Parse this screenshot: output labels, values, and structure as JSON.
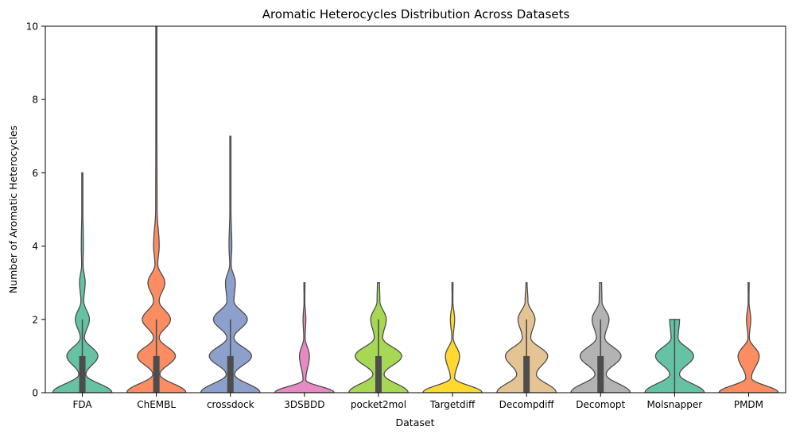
{
  "chart_data": {
    "type": "violin",
    "title": "Aromatic Heterocycles Distribution Across Datasets",
    "xlabel": "Dataset",
    "ylabel": "Number of Aromatic Heterocycles",
    "ylim": [
      0,
      10
    ],
    "yticks": [
      0,
      2,
      4,
      6,
      8,
      10
    ],
    "grid": false,
    "categories": [
      "FDA",
      "ChEMBL",
      "crossdock",
      "3DSBDD",
      "pocket2mol",
      "Targetdiff",
      "Decompdiff",
      "Decomopt",
      "Molsnapper",
      "PMDM"
    ],
    "colors": [
      "#66c2a5",
      "#fc8d62",
      "#8da0cb",
      "#e78ac3",
      "#a6d854",
      "#ffd92f",
      "#e5c494",
      "#b3b3b3",
      "#66c2a5",
      "#fc8d62"
    ],
    "violins": [
      {
        "category": "FDA",
        "max": 6,
        "q1": 0,
        "median": 0,
        "q3": 1,
        "whisker": 2,
        "density": [
          [
            0,
            0.42
          ],
          [
            0.5,
            0.05
          ],
          [
            1,
            0.22
          ],
          [
            1.5,
            0.03
          ],
          [
            2,
            0.1
          ],
          [
            2.5,
            0.02
          ],
          [
            3,
            0.04
          ],
          [
            3.5,
            0.01
          ],
          [
            4,
            0.015
          ],
          [
            5,
            0.008
          ],
          [
            6,
            0.008
          ]
        ]
      },
      {
        "category": "ChEMBL",
        "max": 10,
        "q1": 0,
        "median": 0,
        "q3": 1,
        "whisker": 2,
        "density": [
          [
            0,
            0.42
          ],
          [
            0.5,
            0.05
          ],
          [
            1,
            0.27
          ],
          [
            1.5,
            0.04
          ],
          [
            2,
            0.2
          ],
          [
            2.5,
            0.04
          ],
          [
            3,
            0.12
          ],
          [
            3.5,
            0.02
          ],
          [
            4,
            0.04
          ],
          [
            5,
            0.01
          ],
          [
            7,
            0.008
          ],
          [
            10,
            0.008
          ]
        ]
      },
      {
        "category": "crossdock",
        "max": 7,
        "q1": 0,
        "median": 0,
        "q3": 1,
        "whisker": 2,
        "density": [
          [
            0,
            0.42
          ],
          [
            0.5,
            0.06
          ],
          [
            1,
            0.3
          ],
          [
            1.5,
            0.05
          ],
          [
            2,
            0.24
          ],
          [
            2.5,
            0.05
          ],
          [
            3,
            0.07
          ],
          [
            3.5,
            0.01
          ],
          [
            4,
            0.02
          ],
          [
            5,
            0.008
          ],
          [
            7,
            0.008
          ]
        ]
      },
      {
        "category": "3DSBDD",
        "max": 3,
        "q1": 0,
        "median": 0,
        "q3": 0,
        "whisker": 0,
        "density": [
          [
            0,
            0.42
          ],
          [
            0.35,
            0.02
          ],
          [
            1,
            0.07
          ],
          [
            1.5,
            0.01
          ],
          [
            2,
            0.02
          ],
          [
            2.5,
            0.005
          ],
          [
            3,
            0.008
          ]
        ]
      },
      {
        "category": "pocket2mol",
        "max": 3,
        "q1": 0,
        "median": 0,
        "q3": 1,
        "whisker": 2,
        "density": [
          [
            0,
            0.42
          ],
          [
            0.5,
            0.08
          ],
          [
            1,
            0.33
          ],
          [
            1.5,
            0.06
          ],
          [
            2,
            0.11
          ],
          [
            2.5,
            0.02
          ],
          [
            3,
            0.015
          ]
        ]
      },
      {
        "category": "Targetdiff",
        "max": 3,
        "q1": 0,
        "median": 0,
        "q3": 0,
        "whisker": 0,
        "density": [
          [
            0,
            0.42
          ],
          [
            0.4,
            0.03
          ],
          [
            1,
            0.1
          ],
          [
            1.5,
            0.01
          ],
          [
            2,
            0.03
          ],
          [
            2.5,
            0.005
          ],
          [
            3,
            0.008
          ]
        ]
      },
      {
        "category": "Decompdiff",
        "max": 3,
        "q1": 0,
        "median": 0,
        "q3": 1,
        "whisker": 2,
        "density": [
          [
            0,
            0.42
          ],
          [
            0.5,
            0.14
          ],
          [
            1,
            0.3
          ],
          [
            1.5,
            0.06
          ],
          [
            2,
            0.12
          ],
          [
            2.5,
            0.02
          ],
          [
            3,
            0.008
          ]
        ]
      },
      {
        "category": "Decomopt",
        "max": 3,
        "q1": 0,
        "median": 0,
        "q3": 1,
        "whisker": 2,
        "density": [
          [
            0,
            0.42
          ],
          [
            0.5,
            0.08
          ],
          [
            1,
            0.29
          ],
          [
            1.5,
            0.06
          ],
          [
            2,
            0.12
          ],
          [
            2.5,
            0.02
          ],
          [
            3,
            0.015
          ]
        ]
      },
      {
        "category": "Molsnapper",
        "max": 2,
        "q1": 0,
        "median": 0,
        "q3": 0,
        "whisker": 2,
        "density": [
          [
            0,
            0.42
          ],
          [
            0.5,
            0.07
          ],
          [
            1,
            0.27
          ],
          [
            1.5,
            0.05
          ],
          [
            2,
            0.07
          ]
        ]
      },
      {
        "category": "PMDM",
        "max": 3,
        "q1": 0,
        "median": 0,
        "q3": 0,
        "whisker": 0,
        "density": [
          [
            0,
            0.42
          ],
          [
            0.4,
            0.04
          ],
          [
            1,
            0.15
          ],
          [
            1.5,
            0.01
          ],
          [
            2,
            0.03
          ],
          [
            2.5,
            0.005
          ],
          [
            3,
            0.008
          ]
        ]
      }
    ]
  }
}
